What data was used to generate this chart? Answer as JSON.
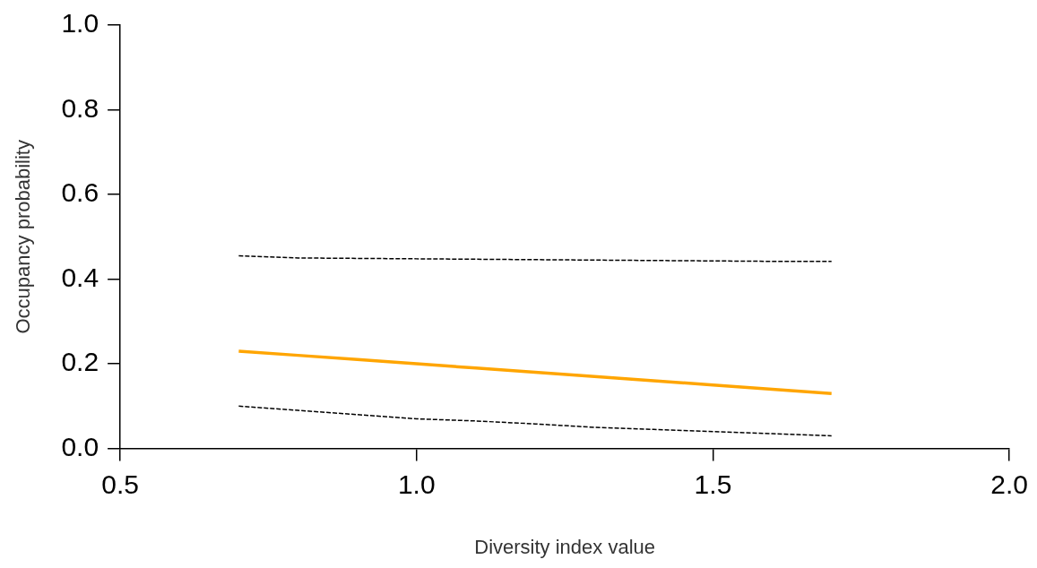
{
  "chart_data": {
    "type": "line",
    "xlabel": "Diversity index value",
    "ylabel": "Occupancy probability",
    "x": [
      0.7,
      0.8,
      0.9,
      1.0,
      1.1,
      1.2,
      1.3,
      1.4,
      1.5,
      1.6,
      1.7
    ],
    "xlim": [
      0.5,
      2.0
    ],
    "xticks": [
      {
        "value": 0.5,
        "label": "0.5"
      },
      {
        "value": 1,
        "label": "1.0"
      },
      {
        "value": 1.5,
        "label": "1.5"
      },
      {
        "value": 2,
        "label": "2.0"
      }
    ],
    "ylim": [
      0,
      1
    ],
    "yticks": [
      {
        "value": 0,
        "label": "0.0"
      },
      {
        "value": 0.2,
        "label": "0.2"
      },
      {
        "value": 0.4,
        "label": "0.4"
      },
      {
        "value": 0.6,
        "label": "0.6"
      },
      {
        "value": 0.8,
        "label": "0.8"
      },
      {
        "value": 1,
        "label": "1.0"
      }
    ],
    "grid": false,
    "legend": false,
    "marker": "none",
    "series": [
      {
        "color": "#000000",
        "line_style": "dashed",
        "values": [
          0.455,
          0.45,
          0.449,
          0.448,
          0.447,
          0.446,
          0.445,
          0.444,
          0.443,
          0.442,
          0.442
        ]
      },
      {
        "color": "#ffa500",
        "line_style": "solid",
        "values": [
          0.23,
          0.22,
          0.21,
          0.2,
          0.19,
          0.18,
          0.17,
          0.16,
          0.15,
          0.14,
          0.13
        ]
      },
      {
        "color": "#000000",
        "line_style": "dashed",
        "values": [
          0.1,
          0.09,
          0.08,
          0.07,
          0.065,
          0.058,
          0.05,
          0.045,
          0.04,
          0.035,
          0.03
        ]
      }
    ]
  }
}
